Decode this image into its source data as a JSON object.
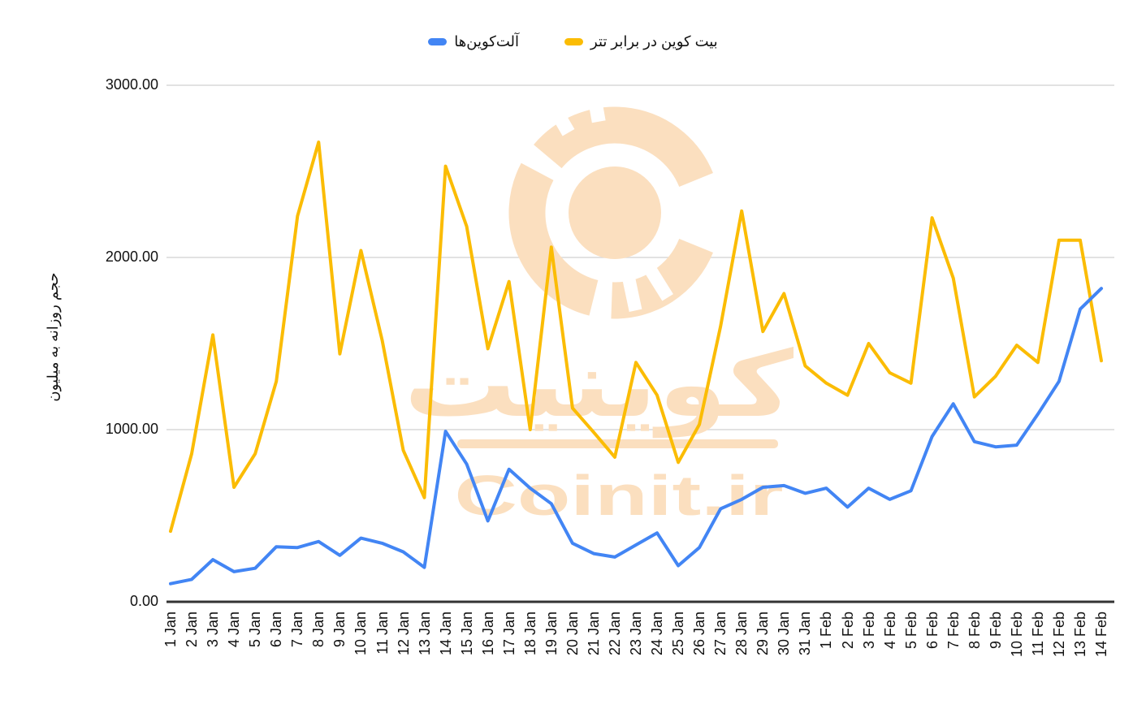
{
  "legend": {
    "items": [
      {
        "label": "آلت‌کوین‌ها",
        "color": "#4285F4"
      },
      {
        "label": "بیت کوین در برابر تتر",
        "color": "#FBBC04"
      }
    ]
  },
  "y_axis": {
    "title": "حجم روزانه به میلیون",
    "ticks": [
      {
        "label": "0.00",
        "value": 0
      },
      {
        "label": "1000.00",
        "value": 1000
      },
      {
        "label": "2000.00",
        "value": 2000
      },
      {
        "label": "3000.00",
        "value": 3000
      }
    ]
  },
  "watermark": {
    "text_fa": "کوینیت",
    "text_en": "Coinit.ir",
    "color": "#FBDFBF"
  },
  "chart_data": {
    "type": "line",
    "title": "",
    "xlabel": "",
    "ylabel": "حجم روزانه به میلیون",
    "ylim": [
      0,
      3000
    ],
    "grid": "horizontal",
    "legend_position": "top",
    "categories": [
      "1 Jan",
      "2 Jan",
      "3 Jan",
      "4 Jan",
      "5 Jan",
      "6 Jan",
      "7 Jan",
      "8 Jan",
      "9 Jan",
      "10 Jan",
      "11 Jan",
      "12 Jan",
      "13 Jan",
      "14 Jan",
      "15 Jan",
      "16 Jan",
      "17 Jan",
      "18 Jan",
      "19 Jan",
      "20 Jan",
      "21 Jan",
      "22 Jan",
      "23 Jan",
      "24 Jan",
      "25 Jan",
      "26 Jan",
      "27 Jan",
      "28 Jan",
      "29 Jan",
      "30 Jan",
      "31 Jan",
      "1 Feb",
      "2 Feb",
      "3 Feb",
      "4 Feb",
      "5 Feb",
      "6 Feb",
      "7 Feb",
      "8 Feb",
      "9 Feb",
      "10 Feb",
      "11 Feb",
      "12 Feb",
      "13 Feb",
      "14 Feb"
    ],
    "series": [
      {
        "name": "بیت کوین در برابر تتر",
        "color": "#FBBC04",
        "values": [
          410,
          860,
          1550,
          665,
          860,
          1280,
          2240,
          2670,
          1440,
          2040,
          1520,
          880,
          605,
          2530,
          2180,
          1470,
          1860,
          1000,
          2060,
          1125,
          985,
          840,
          1390,
          1200,
          810,
          1030,
          1600,
          2270,
          1570,
          1790,
          1370,
          1270,
          1200,
          1500,
          1330,
          1270,
          2230,
          1880,
          1190,
          1310,
          1490,
          1390,
          2100,
          2100,
          1400
        ]
      },
      {
        "name": "آلت‌کوین‌ها",
        "color": "#4285F4",
        "values": [
          105,
          130,
          245,
          175,
          195,
          320,
          315,
          350,
          270,
          370,
          340,
          290,
          200,
          990,
          800,
          470,
          770,
          660,
          570,
          340,
          280,
          260,
          330,
          400,
          210,
          315,
          540,
          595,
          665,
          675,
          630,
          660,
          550,
          660,
          595,
          645,
          960,
          1150,
          930,
          900,
          910,
          1090,
          1280,
          1700,
          1820
        ]
      }
    ]
  }
}
